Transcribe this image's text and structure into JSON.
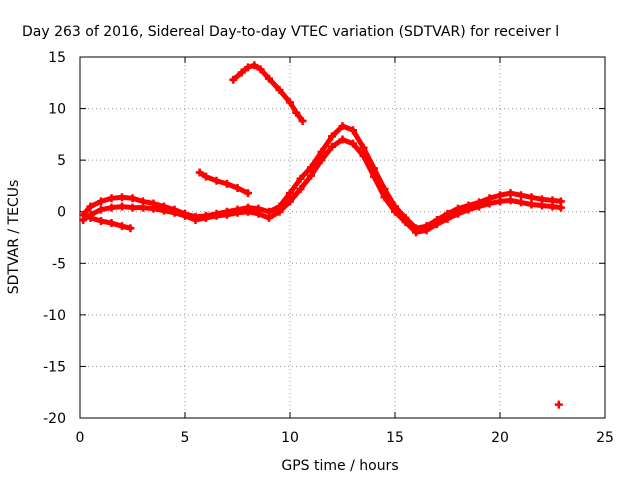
{
  "chart_data": {
    "type": "scatter",
    "title": "Day 263 of 2016, Sidereal Day-to-day VTEC variation (SDTVAR) for receiver l",
    "xlabel": "GPS time / hours",
    "ylabel": "SDTVAR / TECUs",
    "xlim": [
      0,
      25
    ],
    "ylim": [
      -20,
      15
    ],
    "xticks": [
      0,
      5,
      10,
      15,
      20,
      25
    ],
    "yticks": [
      -20,
      -15,
      -10,
      -5,
      0,
      5,
      10,
      15
    ],
    "grid": true,
    "marker_color": "#ff0000",
    "series": [
      {
        "x": [
          0.15,
          0.5,
          1.0,
          1.5,
          2.0,
          2.5,
          3.0,
          3.5,
          4.0,
          4.5,
          5.0,
          5.5,
          6.0,
          6.5,
          7.0,
          7.5,
          8.0,
          8.5,
          9.0,
          9.5,
          10.0,
          10.5,
          11.0,
          11.5,
          12.0,
          12.5,
          13.0,
          13.5,
          14.0,
          14.5,
          15.0,
          15.5,
          16.0,
          16.5,
          17.0,
          17.5,
          18.0,
          18.5,
          19.0,
          19.5,
          20.0,
          20.5,
          21.0,
          21.5,
          22.0,
          22.5,
          22.9
        ],
        "y": [
          -0.3,
          0.5,
          1.0,
          1.3,
          1.4,
          1.3,
          1.0,
          0.8,
          0.5,
          0.2,
          -0.2,
          -0.5,
          -0.4,
          -0.2,
          0.0,
          0.2,
          0.4,
          0.3,
          0.0,
          0.5,
          1.8,
          3.2,
          4.3,
          5.8,
          7.3,
          8.3,
          7.9,
          6.2,
          4.2,
          2.2,
          0.5,
          -0.6,
          -1.6,
          -1.4,
          -0.8,
          -0.2,
          0.3,
          0.6,
          0.9,
          1.3,
          1.6,
          1.8,
          1.6,
          1.4,
          1.2,
          1.1,
          1.0
        ]
      },
      {
        "x": [
          0.15,
          0.5,
          1.0,
          1.5,
          2.0,
          2.5,
          3.0,
          3.5,
          4.0,
          4.5,
          5.0,
          5.5,
          6.0,
          6.5,
          7.0,
          7.5,
          8.0,
          8.5,
          9.0,
          9.5,
          10.0,
          10.5,
          11.0,
          11.5,
          12.0,
          12.5,
          13.0,
          13.5,
          14.0,
          14.5,
          15.0,
          15.5,
          16.0,
          16.5,
          17.0,
          17.5,
          18.0,
          18.5,
          19.0,
          19.5,
          20.0,
          20.5,
          21.0,
          21.5,
          22.0,
          22.5,
          22.9
        ],
        "y": [
          -0.8,
          -0.3,
          0.2,
          0.4,
          0.5,
          0.4,
          0.4,
          0.3,
          0.1,
          -0.1,
          -0.4,
          -0.8,
          -0.6,
          -0.4,
          -0.3,
          -0.1,
          0.0,
          -0.2,
          -0.6,
          0.0,
          1.0,
          2.2,
          3.5,
          5.0,
          6.3,
          7.0,
          6.6,
          5.4,
          3.4,
          1.4,
          0.0,
          -1.0,
          -2.0,
          -1.8,
          -1.2,
          -0.7,
          -0.2,
          0.2,
          0.5,
          0.8,
          1.0,
          1.1,
          0.9,
          0.7,
          0.6,
          0.5,
          0.4
        ]
      },
      {
        "x": [
          0.5,
          1.0,
          1.5,
          2.0,
          2.4
        ],
        "y": [
          -0.6,
          -0.9,
          -1.1,
          -1.4,
          -1.6
        ]
      },
      {
        "x": [
          5.7,
          6.0,
          6.5,
          7.0,
          7.5,
          8.0
        ],
        "y": [
          3.8,
          3.4,
          3.0,
          2.7,
          2.3,
          1.8
        ]
      },
      {
        "x": [
          7.3,
          7.7,
          8.0,
          8.3,
          8.6,
          9.0,
          9.5,
          10.0,
          10.3,
          10.6
        ],
        "y": [
          12.8,
          13.5,
          14.0,
          14.2,
          13.8,
          12.9,
          11.8,
          10.6,
          9.6,
          8.8
        ]
      },
      {
        "x": [
          22.8
        ],
        "y": [
          -18.7
        ]
      }
    ]
  }
}
